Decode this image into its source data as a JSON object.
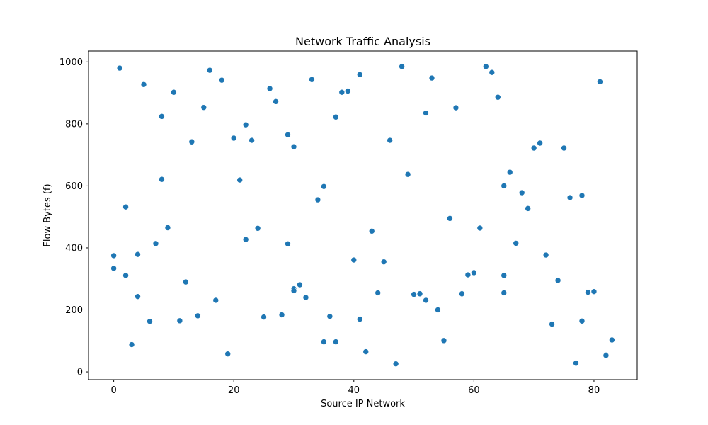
{
  "chart_data": {
    "type": "scatter",
    "title": "Network Traffic Analysis",
    "xlabel": "Source IP Network",
    "ylabel": "Flow Bytes (f)",
    "xlim": [
      -4.2,
      87.2
    ],
    "ylim": [
      -25,
      1035
    ],
    "xticks": [
      0,
      20,
      40,
      60,
      80
    ],
    "yticks": [
      0,
      200,
      400,
      600,
      800,
      1000
    ],
    "grid": false,
    "legend": "none",
    "color": "#1f77b4",
    "points": [
      {
        "x": 0,
        "y": 375
      },
      {
        "x": 0,
        "y": 334
      },
      {
        "x": 1,
        "y": 980
      },
      {
        "x": 2,
        "y": 532
      },
      {
        "x": 2,
        "y": 311
      },
      {
        "x": 3,
        "y": 88
      },
      {
        "x": 4,
        "y": 379
      },
      {
        "x": 4,
        "y": 243
      },
      {
        "x": 5,
        "y": 927
      },
      {
        "x": 6,
        "y": 163
      },
      {
        "x": 7,
        "y": 414
      },
      {
        "x": 8,
        "y": 824
      },
      {
        "x": 8,
        "y": 621
      },
      {
        "x": 9,
        "y": 465
      },
      {
        "x": 10,
        "y": 902
      },
      {
        "x": 11,
        "y": 165
      },
      {
        "x": 12,
        "y": 290
      },
      {
        "x": 13,
        "y": 742
      },
      {
        "x": 14,
        "y": 181
      },
      {
        "x": 15,
        "y": 853
      },
      {
        "x": 16,
        "y": 973
      },
      {
        "x": 17,
        "y": 231
      },
      {
        "x": 18,
        "y": 941
      },
      {
        "x": 19,
        "y": 58
      },
      {
        "x": 20,
        "y": 754
      },
      {
        "x": 21,
        "y": 619
      },
      {
        "x": 22,
        "y": 797
      },
      {
        "x": 22,
        "y": 427
      },
      {
        "x": 23,
        "y": 747
      },
      {
        "x": 24,
        "y": 463
      },
      {
        "x": 25,
        "y": 177
      },
      {
        "x": 26,
        "y": 914
      },
      {
        "x": 27,
        "y": 872
      },
      {
        "x": 28,
        "y": 184
      },
      {
        "x": 29,
        "y": 765
      },
      {
        "x": 29,
        "y": 413
      },
      {
        "x": 30,
        "y": 726
      },
      {
        "x": 30,
        "y": 268
      },
      {
        "x": 30,
        "y": 262
      },
      {
        "x": 31,
        "y": 281
      },
      {
        "x": 32,
        "y": 240
      },
      {
        "x": 33,
        "y": 943
      },
      {
        "x": 34,
        "y": 555
      },
      {
        "x": 35,
        "y": 598
      },
      {
        "x": 35,
        "y": 97
      },
      {
        "x": 36,
        "y": 179
      },
      {
        "x": 37,
        "y": 822
      },
      {
        "x": 37,
        "y": 97
      },
      {
        "x": 38,
        "y": 902
      },
      {
        "x": 39,
        "y": 906
      },
      {
        "x": 40,
        "y": 361
      },
      {
        "x": 41,
        "y": 959
      },
      {
        "x": 41,
        "y": 170
      },
      {
        "x": 42,
        "y": 65
      },
      {
        "x": 43,
        "y": 454
      },
      {
        "x": 44,
        "y": 255
      },
      {
        "x": 45,
        "y": 355
      },
      {
        "x": 46,
        "y": 747
      },
      {
        "x": 47,
        "y": 26
      },
      {
        "x": 48,
        "y": 985
      },
      {
        "x": 49,
        "y": 637
      },
      {
        "x": 50,
        "y": 250
      },
      {
        "x": 51,
        "y": 252
      },
      {
        "x": 52,
        "y": 835
      },
      {
        "x": 52,
        "y": 231
      },
      {
        "x": 53,
        "y": 948
      },
      {
        "x": 54,
        "y": 200
      },
      {
        "x": 55,
        "y": 101
      },
      {
        "x": 56,
        "y": 495
      },
      {
        "x": 57,
        "y": 852
      },
      {
        "x": 58,
        "y": 252
      },
      {
        "x": 59,
        "y": 313
      },
      {
        "x": 60,
        "y": 320
      },
      {
        "x": 61,
        "y": 464
      },
      {
        "x": 62,
        "y": 985
      },
      {
        "x": 63,
        "y": 966
      },
      {
        "x": 64,
        "y": 886
      },
      {
        "x": 65,
        "y": 600
      },
      {
        "x": 65,
        "y": 311
      },
      {
        "x": 65,
        "y": 255
      },
      {
        "x": 66,
        "y": 644
      },
      {
        "x": 67,
        "y": 415
      },
      {
        "x": 68,
        "y": 578
      },
      {
        "x": 69,
        "y": 527
      },
      {
        "x": 70,
        "y": 722
      },
      {
        "x": 71,
        "y": 738
      },
      {
        "x": 72,
        "y": 377
      },
      {
        "x": 73,
        "y": 154
      },
      {
        "x": 74,
        "y": 295
      },
      {
        "x": 75,
        "y": 722
      },
      {
        "x": 76,
        "y": 562
      },
      {
        "x": 77,
        "y": 28
      },
      {
        "x": 78,
        "y": 569
      },
      {
        "x": 78,
        "y": 164
      },
      {
        "x": 79,
        "y": 257
      },
      {
        "x": 80,
        "y": 259
      },
      {
        "x": 81,
        "y": 936
      },
      {
        "x": 82,
        "y": 55
      },
      {
        "x": 82,
        "y": 53
      },
      {
        "x": 83,
        "y": 103
      }
    ]
  }
}
